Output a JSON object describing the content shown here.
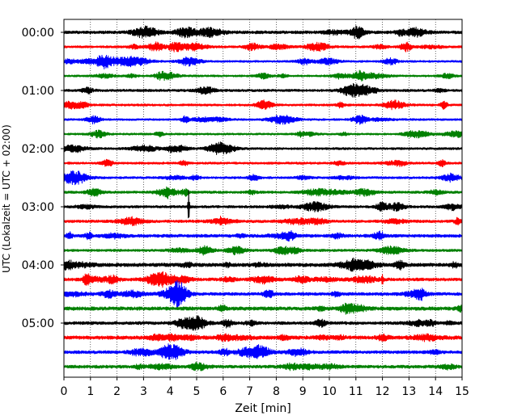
{
  "chart_data": {
    "type": "line",
    "subtype": "helicorder",
    "xlabel": "Zeit  [min]",
    "ylabel": "UTC (Lokalzeit = UTC + 02:00)",
    "xlim": [
      0,
      15
    ],
    "xticks": [
      0,
      1,
      2,
      3,
      4,
      5,
      6,
      7,
      8,
      9,
      10,
      11,
      12,
      13,
      14,
      15
    ],
    "x_gridlines": "dotted vertical at every minute",
    "y_tick_labels": [
      "00:00",
      "01:00",
      "02:00",
      "03:00",
      "04:00",
      "05:00"
    ],
    "traces_per_hour": 4,
    "trace_minutes": 15,
    "trace_colors_cycle": [
      "#000000",
      "#ff0000",
      "#0000ff",
      "#008000"
    ],
    "traces": [
      {
        "start": "00:00",
        "color": "#000000",
        "amplitude": 0.6
      },
      {
        "start": "00:15",
        "color": "#ff0000",
        "amplitude": 0.45
      },
      {
        "start": "00:30",
        "color": "#0000ff",
        "amplitude": 0.4
      },
      {
        "start": "00:45",
        "color": "#008000",
        "amplitude": 0.4
      },
      {
        "start": "01:00",
        "color": "#000000",
        "amplitude": 0.5
      },
      {
        "start": "01:15",
        "color": "#ff0000",
        "amplitude": 0.45
      },
      {
        "start": "01:30",
        "color": "#0000ff",
        "amplitude": 0.4
      },
      {
        "start": "01:45",
        "color": "#008000",
        "amplitude": 0.4
      },
      {
        "start": "02:00",
        "color": "#000000",
        "amplitude": 0.45
      },
      {
        "start": "02:15",
        "color": "#ff0000",
        "amplitude": 0.45
      },
      {
        "start": "02:30",
        "color": "#0000ff",
        "amplitude": 0.45
      },
      {
        "start": "02:45",
        "color": "#008000",
        "amplitude": 0.5
      },
      {
        "start": "03:00",
        "color": "#000000",
        "amplitude": 0.5
      },
      {
        "start": "03:15",
        "color": "#ff0000",
        "amplitude": 0.55
      },
      {
        "start": "03:30",
        "color": "#0000ff",
        "amplitude": 0.6
      },
      {
        "start": "03:45",
        "color": "#008000",
        "amplitude": 0.5
      },
      {
        "start": "04:00",
        "color": "#000000",
        "amplitude": 0.7
      },
      {
        "start": "04:15",
        "color": "#ff0000",
        "amplitude": 0.6
      },
      {
        "start": "04:30",
        "color": "#0000ff",
        "amplitude": 0.6
      },
      {
        "start": "04:45",
        "color": "#008000",
        "amplitude": 0.7
      },
      {
        "start": "05:00",
        "color": "#000000",
        "amplitude": 0.6
      },
      {
        "start": "05:15",
        "color": "#ff0000",
        "amplitude": 0.7
      },
      {
        "start": "05:30",
        "color": "#0000ff",
        "amplitude": 0.6
      },
      {
        "start": "05:45",
        "color": "#008000",
        "amplitude": 0.6
      }
    ],
    "events": [
      {
        "trace_start": "03:00",
        "minute": 4.7,
        "amplitude": 6.0
      },
      {
        "trace_start": "04:15",
        "minute": 12.0,
        "amplitude": 1.6
      },
      {
        "trace_start": "03:15",
        "minute": 5.9,
        "amplitude": 1.1
      },
      {
        "trace_start": "02:45",
        "minute": 3.9,
        "amplitude": 1.0
      }
    ]
  }
}
